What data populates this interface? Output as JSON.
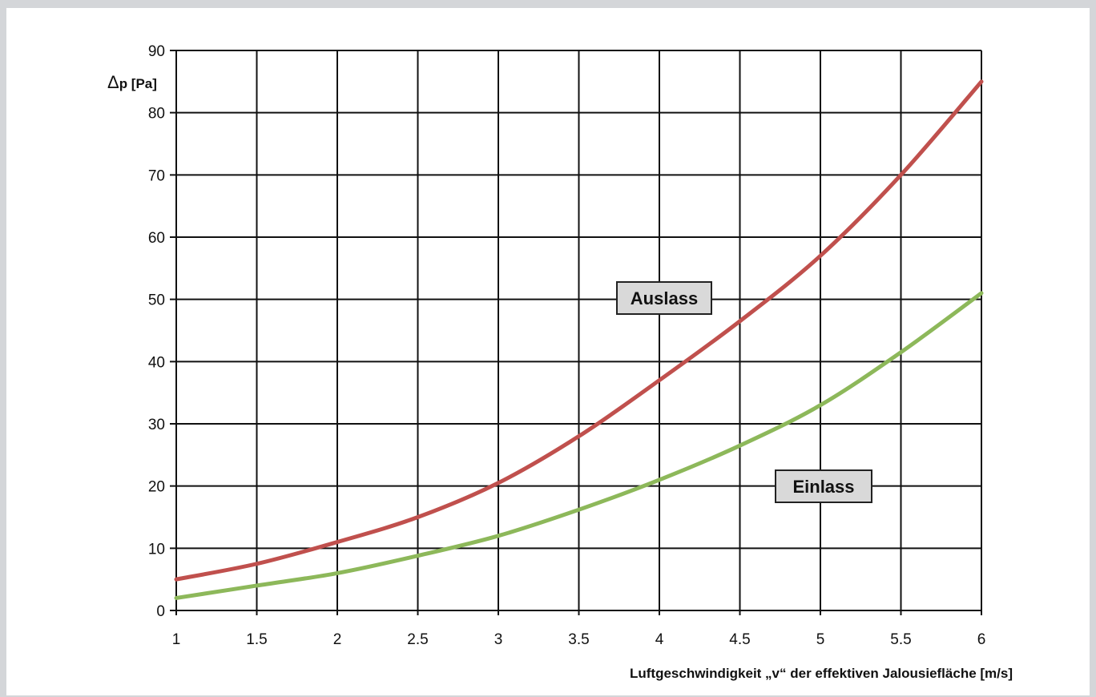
{
  "chart_data": {
    "type": "line",
    "title": "",
    "xlabel": "Luftgeschwindigkeit „v“ der effektiven Jalousiefläche [m/s]",
    "ylabel_delta": "Δ",
    "ylabel_rest": "p [Pa]",
    "xlim": [
      1,
      6
    ],
    "ylim": [
      0,
      90
    ],
    "x_ticks": [
      "1",
      "1.5",
      "2",
      "2.5",
      "3",
      "3.5",
      "4",
      "4.5",
      "5",
      "5.5",
      "6"
    ],
    "y_ticks": [
      "0",
      "10",
      "20",
      "30",
      "40",
      "50",
      "60",
      "70",
      "80",
      "90"
    ],
    "grid": true,
    "series": [
      {
        "name": "Auslass",
        "color": "#c0504d",
        "x": [
          1,
          1.5,
          2,
          2.5,
          3,
          3.5,
          4,
          4.5,
          5,
          5.5,
          6
        ],
        "y": [
          5,
          7.5,
          11,
          15,
          20.5,
          28,
          37,
          46.5,
          57,
          70,
          85
        ]
      },
      {
        "name": "Einlass",
        "color": "#8db85a",
        "x": [
          1,
          1.5,
          2,
          2.5,
          3,
          3.5,
          4,
          4.5,
          5,
          5.5,
          6
        ],
        "y": [
          2,
          4,
          6,
          8.8,
          12,
          16.2,
          21,
          26.5,
          33,
          41.5,
          51
        ]
      }
    ]
  }
}
